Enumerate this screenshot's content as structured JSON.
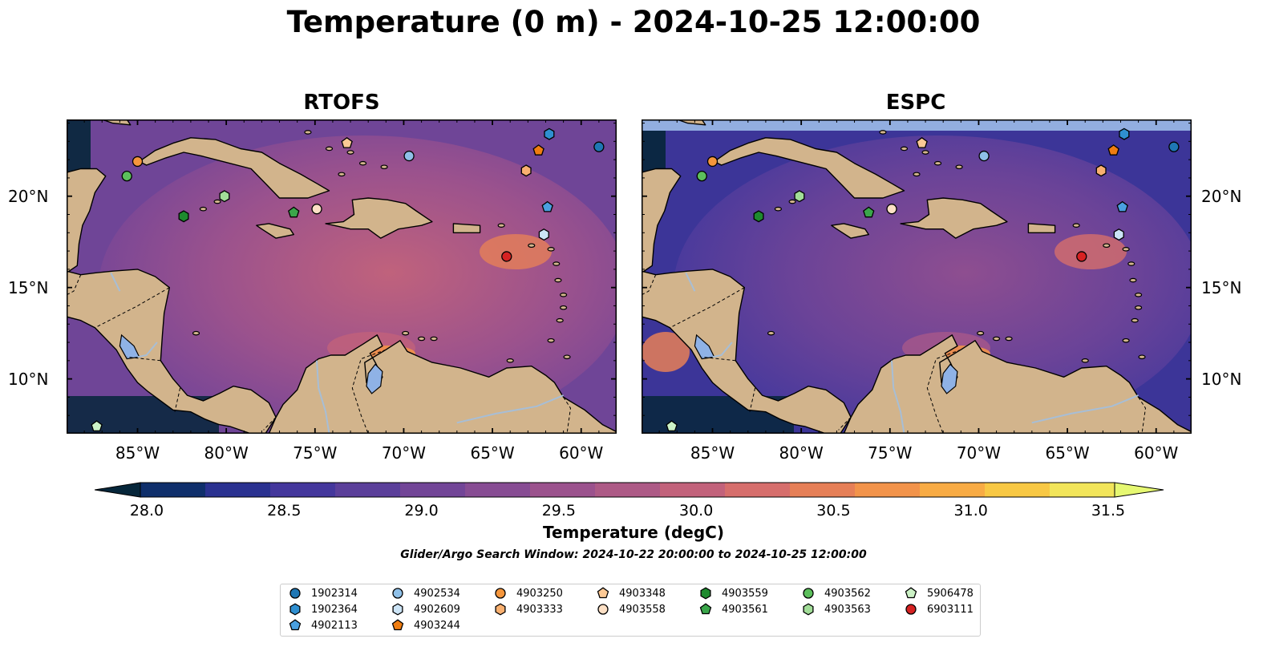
{
  "figure": {
    "title": "Temperature (0 m) - 2024-10-25 12:00:00",
    "search_window": "Glider/Argo Search Window: 2024-10-22 20:00:00 to 2024-10-25 12:00:00"
  },
  "panels": [
    {
      "title": "RTOFS",
      "lat_labels_side": "left"
    },
    {
      "title": "ESPC",
      "lat_labels_side": "right"
    }
  ],
  "map_extent": {
    "lon": [
      -89,
      -58
    ],
    "lat": [
      7,
      24.2
    ]
  },
  "lon_ticks": [
    "85°W",
    "80°W",
    "75°W",
    "70°W",
    "65°W",
    "60°W"
  ],
  "lat_ticks": [
    "20°N",
    "15°N",
    "10°N"
  ],
  "colorbar": {
    "label": "Temperature (degC)",
    "ticks": [
      "28.0",
      "28.5",
      "29.0",
      "29.5",
      "30.0",
      "30.5",
      "31.0",
      "31.5"
    ],
    "range": [
      28.0,
      31.5
    ],
    "extend": "both",
    "colors": [
      "#06263a",
      "#0f2f6b",
      "#2a3190",
      "#44379c",
      "#5b3f9a",
      "#724597",
      "#874c93",
      "#9b528d",
      "#ad5a86",
      "#c2627b",
      "#d66e6c",
      "#e67f57",
      "#f2934a",
      "#f8ab44",
      "#f8c844",
      "#f2e55a",
      "#e6f872"
    ]
  },
  "land_color": "#d2b48c",
  "floats": [
    {
      "id": "1902314",
      "marker": "circle",
      "color": "#1f77b4",
      "lon": -59.0,
      "lat": 22.7
    },
    {
      "id": "1902364",
      "marker": "hexagon",
      "color": "#2f8fd0",
      "lon": -61.8,
      "lat": 23.4
    },
    {
      "id": "4902113",
      "marker": "pentagon",
      "color": "#4aa0e0",
      "lon": -61.9,
      "lat": 19.4
    },
    {
      "id": "4902534",
      "marker": "circle",
      "color": "#8fc0e8",
      "lon": -69.7,
      "lat": 22.2
    },
    {
      "id": "4902609",
      "marker": "hexagon",
      "color": "#cce4f6",
      "lon": -62.1,
      "lat": 17.9
    },
    {
      "id": "4903244",
      "marker": "pentagon",
      "color": "#f07d10",
      "lon": -62.4,
      "lat": 22.5
    },
    {
      "id": "4903250",
      "marker": "circle",
      "color": "#f5963c",
      "lon": -85.0,
      "lat": 21.9
    },
    {
      "id": "4903333",
      "marker": "hexagon",
      "color": "#f9b070",
      "lon": -63.1,
      "lat": 21.4
    },
    {
      "id": "4903348",
      "marker": "pentagon",
      "color": "#fcc995",
      "lon": -73.2,
      "lat": 22.9
    },
    {
      "id": "4903558",
      "marker": "circle",
      "color": "#fde0c5",
      "lon": -74.9,
      "lat": 19.3
    },
    {
      "id": "4903559",
      "marker": "hexagon",
      "color": "#1e8a2e",
      "lon": -82.4,
      "lat": 18.9
    },
    {
      "id": "4903561",
      "marker": "pentagon",
      "color": "#3aa64a",
      "lon": -76.2,
      "lat": 19.1
    },
    {
      "id": "4903562",
      "marker": "circle",
      "color": "#5cbf5c",
      "lon": -85.6,
      "lat": 21.1
    },
    {
      "id": "4903563",
      "marker": "hexagon",
      "color": "#a2dd98",
      "lon": -80.1,
      "lat": 20.0
    },
    {
      "id": "5906478",
      "marker": "pentagon",
      "color": "#ccf2c6",
      "lon": -87.3,
      "lat": 7.4
    },
    {
      "id": "6903111",
      "marker": "circle",
      "color": "#d62222",
      "lon": -64.2,
      "lat": 16.7
    }
  ]
}
